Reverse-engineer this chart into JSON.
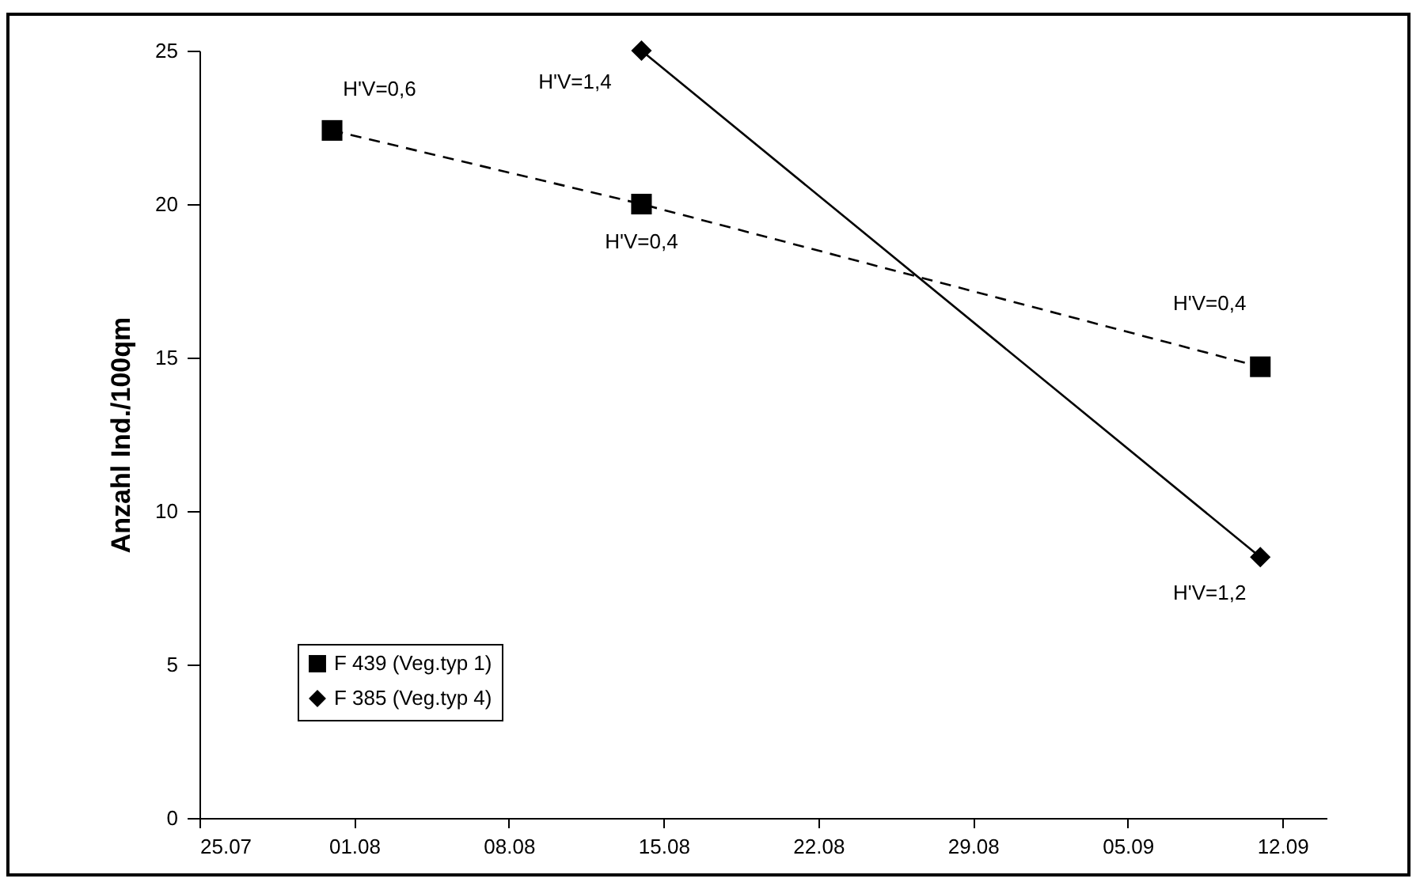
{
  "chart_data": {
    "type": "line",
    "ylabel": "Anzahl Ind./100qm",
    "xlim": [
      "--07-25",
      "--09-14"
    ],
    "xticks": [
      {
        "value": "--07-25",
        "label": "25.07"
      },
      {
        "value": "--08-01",
        "label": "01.08"
      },
      {
        "value": "--08-08",
        "label": "08.08"
      },
      {
        "value": "--08-15",
        "label": "15.08"
      },
      {
        "value": "--08-22",
        "label": "22.08"
      },
      {
        "value": "--08-29",
        "label": "29.08"
      },
      {
        "value": "--09-05",
        "label": "05.09"
      },
      {
        "value": "--09-12",
        "label": "12.09"
      }
    ],
    "ylim": [
      0,
      25
    ],
    "yticks": [
      0,
      5,
      10,
      15,
      20,
      25
    ],
    "series": [
      {
        "name": "F 439 (Veg.typ 1)",
        "color": "#000000",
        "x": [
          "--07-31",
          "--08-14",
          "--09-11"
        ],
        "values": [
          22.4,
          20,
          14.7
        ],
        "marker": "square",
        "line_style": "dashed"
      },
      {
        "name": "F 385 (Veg.typ 4)",
        "color": "#000000",
        "x": [
          "--08-14",
          "--09-11"
        ],
        "values": [
          25,
          8.5
        ],
        "marker": "diamond",
        "line_style": "solid"
      }
    ],
    "annotations": [
      {
        "text": "H'V=0,6",
        "x": "--07-31",
        "y": 22.4
      },
      {
        "text": "H'V=1,4",
        "x": "--08-14",
        "y": 25
      },
      {
        "text": "H'V=0,4",
        "x": "--08-14",
        "y": 20
      },
      {
        "text": "H'V=0,4",
        "x": "--09-11",
        "y": 14.7
      },
      {
        "text": "H'V=1,2",
        "x": "--09-11",
        "y": 8.5
      }
    ],
    "legend": "bottom left",
    "grid": false
  }
}
